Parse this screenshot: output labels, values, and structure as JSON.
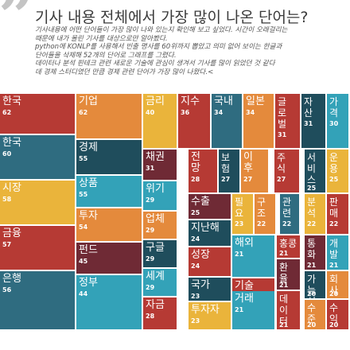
{
  "header": {
    "title": "기사 내용 전체에서 가장 많이 나온 단어는?",
    "description": [
      "기사내용에 어떤 단어들이 가장 많이 나와 있는지 확인해 보고 싶었다. 시간이 오래걸리는",
      "때문에 내가 올린 기사를 대상으로만 알아봤다.",
      "python에 KONLP를 사용해서 빈출 명사를 60위까지 뽑았고 의미 없어 보이는 한글과",
      "단어들을 삭제해 52개의 단어로 그래프를 그렸다.",
      "데이터나 분석 핀테크 관련 새로운 기술에 관심이 생겨서 기사를 많이 읽었던 것 같다",
      "데 경제 스터디였던 만큼 경제 관련 단어가 가장 많이 나왔다.<"
    ]
  },
  "chart_data": {
    "type": "treemap",
    "title": "기사 내용 전체에서 가장 많이 나온 단어는?",
    "items": [
      {
        "label": "한국",
        "value": 62,
        "color": "#b63a34"
      },
      {
        "label": "한국",
        "value": 60,
        "color": "#2f6c80"
      },
      {
        "label": "시장",
        "value": 58,
        "color": "#eab43b"
      },
      {
        "label": "금융",
        "value": 57,
        "color": "#b63a34"
      },
      {
        "label": "은행",
        "value": 56,
        "color": "#2f6c80"
      },
      {
        "label": "기업",
        "value": 62,
        "color": "#e48a3c"
      },
      {
        "label": "경제",
        "value": 55,
        "color": "#1f4d5c"
      },
      {
        "label": "상품",
        "value": 55,
        "color": "#33a2b8"
      },
      {
        "label": "투자",
        "value": 54,
        "color": "#e48a3c"
      },
      {
        "label": "펀드",
        "value": 45,
        "color": "#6f2a35"
      },
      {
        "label": "정부",
        "value": 44,
        "color": "#33a2b8"
      },
      {
        "label": "금리",
        "value": 40,
        "color": "#eab43b"
      },
      {
        "label": "채권",
        "value": 31,
        "color": "#6f2a35"
      },
      {
        "label": "위기",
        "value": 29,
        "color": "#33a2b8"
      },
      {
        "label": "업체",
        "value": 29,
        "color": "#e48a3c"
      },
      {
        "label": "구글",
        "value": 29,
        "color": "#1f4d5c"
      },
      {
        "label": "세계",
        "value": 29,
        "color": "#33a2b8"
      },
      {
        "label": "자금",
        "value": 28,
        "color": "#b63a34"
      },
      {
        "label": "지수",
        "value": 36,
        "color": "#b63a34"
      },
      {
        "label": "국내",
        "value": 34,
        "color": "#2f6c80"
      },
      {
        "label": "일본",
        "value": 34,
        "color": "#e48a3c"
      },
      {
        "label": "글로벌",
        "value": 31,
        "color": "#b63a34"
      },
      {
        "label": "자산",
        "value": 31,
        "color": "#1f4d5c"
      },
      {
        "label": "가격",
        "value": 30,
        "color": "#33a2b8"
      },
      {
        "label": "전망",
        "value": 28,
        "color": "#b63a34"
      },
      {
        "label": "보험",
        "value": 27,
        "color": "#1f4d5c"
      },
      {
        "label": "이후",
        "value": 27,
        "color": "#e48a3c"
      },
      {
        "label": "주식",
        "value": 27,
        "color": "#b63a34"
      },
      {
        "label": "서비스",
        "value": 25,
        "color": "#1f4d5c"
      },
      {
        "label": "운용",
        "value": 25,
        "color": "#eab43b"
      },
      {
        "label": "수출",
        "value": 25,
        "color": "#6f2a35"
      },
      {
        "label": "필요",
        "value": 23,
        "color": "#eab43b"
      },
      {
        "label": "구조",
        "value": 22,
        "color": "#e48a3c"
      },
      {
        "label": "관련",
        "value": 22,
        "color": "#2f6c80"
      },
      {
        "label": "분석",
        "value": 22,
        "color": "#eab43b"
      },
      {
        "label": "판매",
        "value": 22,
        "color": "#b63a34"
      },
      {
        "label": "지난해",
        "value": 24,
        "color": "#1f4d5c"
      },
      {
        "label": "성장",
        "value": 24,
        "color": "#b63a34"
      },
      {
        "label": "국가",
        "value": 23,
        "color": "#1f4d5c"
      },
      {
        "label": "투자자",
        "value": 23,
        "color": "#eab43b"
      },
      {
        "label": "해외",
        "value": 21,
        "color": "#33a2b8"
      },
      {
        "label": "홍콩",
        "value": 21,
        "color": "#b63a34"
      },
      {
        "label": "통화",
        "value": 21,
        "color": "#6f2a35"
      },
      {
        "label": "개발",
        "value": 21,
        "color": "#33a2b8"
      },
      {
        "label": "기술",
        "value": 21,
        "color": "#b63a34"
      },
      {
        "label": "환율",
        "value": 21,
        "color": "#6f2a35"
      },
      {
        "label": "가능성",
        "value": 20,
        "color": "#1f4d5c"
      },
      {
        "label": "회사",
        "value": 20,
        "color": "#e48a3c"
      },
      {
        "label": "거래",
        "value": 21,
        "color": "#33a2b8"
      },
      {
        "label": "데이터",
        "value": 21,
        "color": "#b63a34"
      },
      {
        "label": "수준",
        "value": 20,
        "color": "#e48a3c"
      },
      {
        "label": "수익",
        "value": 20,
        "color": "#b63a34"
      }
    ]
  }
}
